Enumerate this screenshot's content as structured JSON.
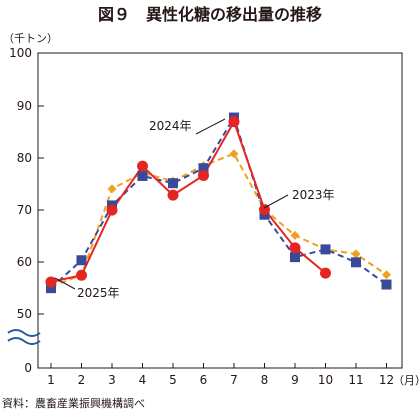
{
  "chart_data": {
    "type": "line",
    "title": "図９　異性化糖の移出量の推移",
    "ylabel": "（千トン）",
    "xlabel": "（月）",
    "source": "資料：農畜産業振興機構調べ",
    "x": [
      "1",
      "2",
      "3",
      "4",
      "5",
      "6",
      "7",
      "8",
      "9",
      "10",
      "11",
      "12"
    ],
    "y_ticks": [
      "100",
      "90",
      "80",
      "70",
      "60",
      "50",
      "0"
    ],
    "y_break": true,
    "ylim": [
      50,
      100
    ],
    "grid": false,
    "series": [
      {
        "name": "2023年",
        "color": "#f0a020",
        "marker": "diamond",
        "dash": "dashed",
        "values": [
          55.3,
          57.5,
          74.2,
          77.3,
          75.7,
          78.7,
          81.0,
          70.2,
          65.2,
          62.5,
          61.6,
          57.6
        ]
      },
      {
        "name": "2024年",
        "color": "#3a4a9a",
        "marker": "square",
        "dash": "dashed",
        "values": [
          55.0,
          60.4,
          71.0,
          76.7,
          75.3,
          78.2,
          88.0,
          69.2,
          61.0,
          62.5,
          60.0,
          55.7
        ]
      },
      {
        "name": "2025年",
        "color": "#e52521",
        "marker": "circle",
        "dash": "solid",
        "values": [
          56.2,
          57.5,
          70.1,
          78.6,
          73.0,
          76.8,
          87.2,
          70.2,
          62.8,
          57.9,
          null,
          null
        ]
      }
    ]
  }
}
